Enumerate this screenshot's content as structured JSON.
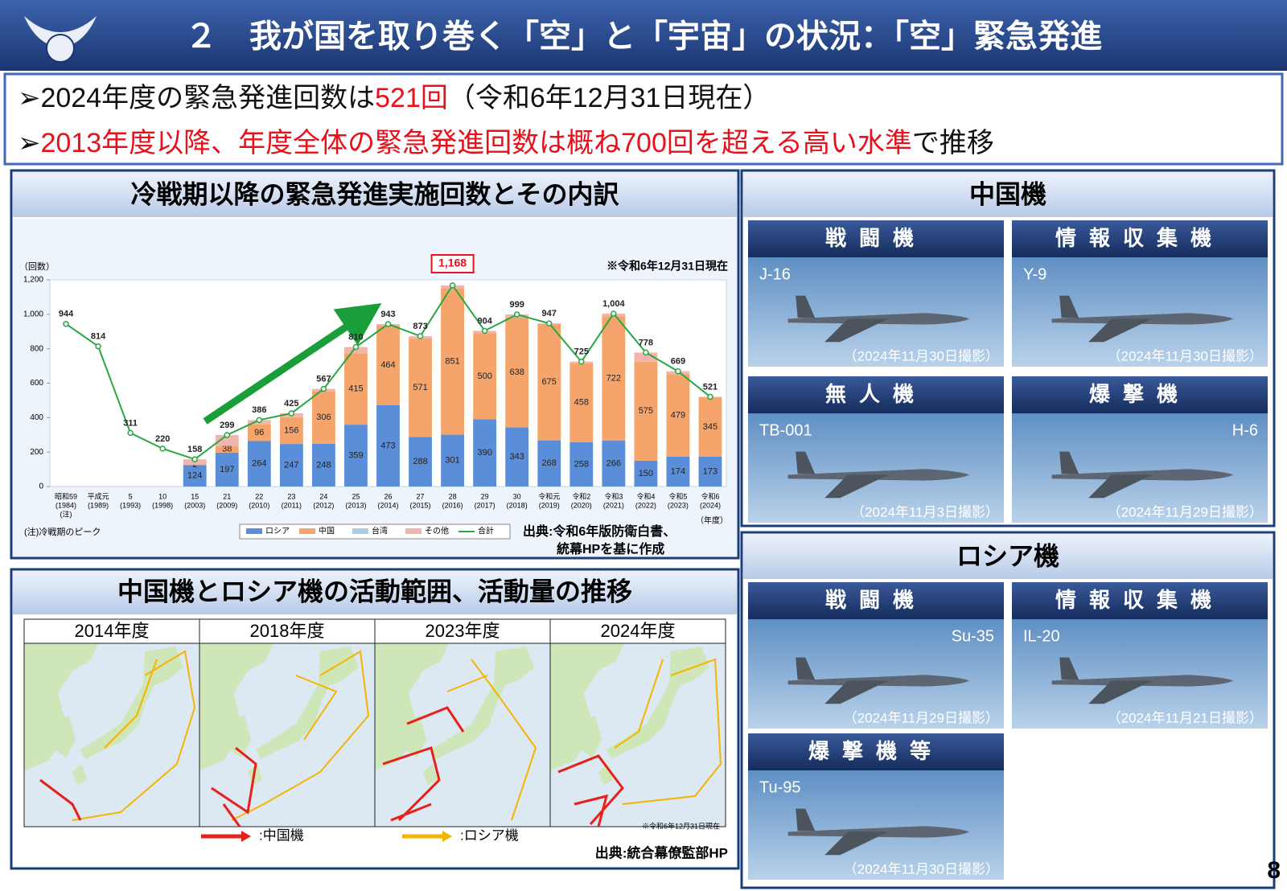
{
  "header": {
    "title": "２　我が国を取り巻く「空」と「宇宙」の状況：「空」緊急発進"
  },
  "bullets": [
    {
      "segments": [
        {
          "text": "➢2024年度の緊急発進回数は",
          "color": "#111111"
        },
        {
          "text": "521回",
          "color": "#e8101a"
        },
        {
          "text": "（令和6年12月31日現在）",
          "color": "#111111"
        }
      ]
    },
    {
      "segments": [
        {
          "text": "➢",
          "color": "#111111"
        },
        {
          "text": "2013年度以降、年度全体の緊急発進回数は概ね700回を超える高い水準",
          "color": "#e8101a"
        },
        {
          "text": "で推移",
          "color": "#111111"
        }
      ]
    }
  ],
  "chart_data": {
    "type": "bar",
    "stacked": true,
    "title": "冷戦期以降の緊急発進実施回数とその内訳",
    "y_label": "（回数）",
    "x_label": "（年度）",
    "note": "※令和6年12月31日現在",
    "footnote": "(注)冷戦期のピーク",
    "source": [
      "出典:令和6年版防衛白書、",
      "統幕HPを基に作成"
    ],
    "categories": [
      [
        "昭和59",
        "(1984)",
        "(注)"
      ],
      [
        "平成元",
        "(1989)"
      ],
      [
        "5",
        "(1993)"
      ],
      [
        "10",
        "(1998)"
      ],
      [
        "15",
        "(2003)"
      ],
      [
        "21",
        "(2009)"
      ],
      [
        "22",
        "(2010)"
      ],
      [
        "23",
        "(2011)"
      ],
      [
        "24",
        "(2012)"
      ],
      [
        "25",
        "(2013)"
      ],
      [
        "26",
        "(2014)"
      ],
      [
        "27",
        "(2015)"
      ],
      [
        "28",
        "(2016)"
      ],
      [
        "29",
        "(2017)"
      ],
      [
        "30",
        "(2018)"
      ],
      [
        "令和元",
        "(2019)"
      ],
      [
        "令和2",
        "(2020)"
      ],
      [
        "令和3",
        "(2021)"
      ],
      [
        "令和4",
        "(2022)"
      ],
      [
        "令和5",
        "(2023)"
      ],
      [
        "令和6",
        "(2024)"
      ]
    ],
    "series": [
      {
        "name": "ロシア",
        "color": "#5b8ed8",
        "values": [
          null,
          null,
          null,
          null,
          124,
          197,
          264,
          247,
          248,
          359,
          473,
          288,
          301,
          390,
          343,
          268,
          258,
          266,
          150,
          174,
          173
        ]
      },
      {
        "name": "中国",
        "color": "#f5a56b",
        "values": [
          null,
          null,
          null,
          null,
          2,
          38,
          96,
          156,
          306,
          415,
          464,
          571,
          851,
          500,
          638,
          675,
          458,
          722,
          575,
          479,
          345
        ]
      },
      {
        "name": "台湾",
        "color": "#a9cdea",
        "values": [
          null,
          null,
          null,
          null,
          null,
          null,
          null,
          null,
          null,
          null,
          null,
          null,
          null,
          null,
          null,
          null,
          null,
          null,
          null,
          null,
          null
        ]
      },
      {
        "name": "その他",
        "color": "#f2b5ad",
        "values": [
          null,
          null,
          null,
          null,
          32,
          64,
          26,
          22,
          13,
          36,
          6,
          14,
          16,
          14,
          18,
          4,
          9,
          16,
          53,
          16,
          3
        ]
      }
    ],
    "total": {
      "name": "合計",
      "color": "#27a844",
      "values": [
        944,
        814,
        311,
        220,
        158,
        299,
        386,
        425,
        567,
        810,
        943,
        873,
        1168,
        904,
        999,
        947,
        725,
        1004,
        778,
        669,
        521
      ],
      "value_labels": [
        "944",
        "814",
        "311",
        "220",
        "158",
        "299",
        "386",
        "425",
        "567",
        "810",
        "943",
        "873",
        "1,168",
        "904",
        "999",
        "947",
        "725",
        "1,004",
        "778",
        "669",
        "521"
      ]
    },
    "ylim": [
      0,
      1200
    ],
    "yticks": [
      0,
      200,
      400,
      600,
      800,
      {
        "value": 1000,
        "label": "1,000"
      },
      {
        "value": 1200,
        "label": "1,200"
      }
    ],
    "grid": false
  },
  "maps": {
    "title": "中国機とロシア機の活動範囲、活動量の推移",
    "years": [
      "2014年度",
      "2018年度",
      "2023年度",
      "2024年度"
    ],
    "note": "※令和6年12月31日現在",
    "legend": [
      {
        "label": ":中国機",
        "color": "#e8201a"
      },
      {
        "label": ":ロシア機",
        "color": "#f5b400"
      }
    ],
    "source": "出典:統合幕僚監部HP"
  },
  "china": {
    "title": "中国機",
    "cards": [
      {
        "category": "戦闘機",
        "model": "J-16",
        "date": "（2024年11月30日撮影）"
      },
      {
        "category": "情報収集機",
        "model": "Y-9",
        "date": "（2024年11月30日撮影）"
      },
      {
        "category": "無人機",
        "model": "TB-001",
        "date": "（2024年11月3日撮影）"
      },
      {
        "category": "爆撃機",
        "model": "H-6",
        "date": "（2024年11月29日撮影）"
      }
    ]
  },
  "russia": {
    "title": "ロシア機",
    "cards": [
      {
        "category": "戦闘機",
        "model": "Su-35",
        "date": "（2024年11月29日撮影）"
      },
      {
        "category": "情報収集機",
        "model": "IL-20",
        "date": "（2024年11月21日撮影）"
      },
      {
        "category": "爆撃機等",
        "model": "Tu-95",
        "date": "（2024年11月30日撮影）"
      }
    ]
  },
  "page_number": "8"
}
